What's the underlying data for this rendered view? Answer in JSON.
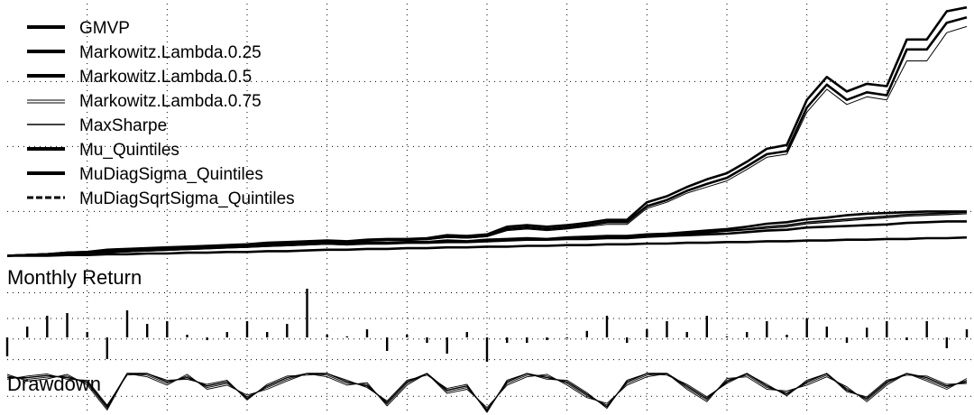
{
  "chart_data": [
    {
      "type": "line",
      "panel": "cumulative",
      "title": "",
      "grid": true,
      "legend_position": "top-left",
      "legend": [
        "GMVP",
        "Markowitz.Lambda.0.25",
        "Markowitz.Lambda.0.5",
        "Markowitz.Lambda.0.75",
        "MaxSharpe",
        "Mu_Quintiles",
        "MuDiagSigma_Quintiles",
        "MuDiagSqrtSigma_Quintiles"
      ],
      "x": [
        0,
        1,
        2,
        3,
        4,
        5,
        6,
        7,
        8,
        9,
        10,
        11,
        12,
        13,
        14,
        15,
        16,
        17,
        18,
        19,
        20,
        21,
        22,
        23,
        24,
        25,
        26,
        27,
        28,
        29,
        30,
        31,
        32,
        33,
        34,
        35,
        36,
        37,
        38,
        39,
        40,
        41,
        42,
        43,
        44,
        45,
        46,
        47,
        48
      ],
      "ylim": [
        0.9,
        4.3
      ],
      "series": [
        {
          "name": "GMVP",
          "color": "#000000",
          "width": 2.6,
          "values": [
            1.0,
            1.0,
            1.0,
            1.01,
            1.01,
            1.02,
            1.02,
            1.03,
            1.03,
            1.04,
            1.04,
            1.05,
            1.05,
            1.06,
            1.06,
            1.07,
            1.08,
            1.08,
            1.09,
            1.09,
            1.1,
            1.1,
            1.11,
            1.11,
            1.12,
            1.12,
            1.13,
            1.13,
            1.14,
            1.14,
            1.15,
            1.15,
            1.16,
            1.16,
            1.17,
            1.17,
            1.18,
            1.18,
            1.19,
            1.19,
            1.2,
            1.2,
            1.21,
            1.21,
            1.22,
            1.22,
            1.23,
            1.23,
            1.24
          ]
        },
        {
          "name": "Markowitz.Lambda.0.25",
          "color": "#000000",
          "width": 2.6,
          "values": [
            1.0,
            1.01,
            1.02,
            1.04,
            1.05,
            1.08,
            1.09,
            1.1,
            1.11,
            1.12,
            1.13,
            1.14,
            1.15,
            1.17,
            1.18,
            1.19,
            1.2,
            1.19,
            1.21,
            1.22,
            1.22,
            1.23,
            1.27,
            1.26,
            1.28,
            1.38,
            1.4,
            1.38,
            1.4,
            1.43,
            1.47,
            1.47,
            1.7,
            1.78,
            1.9,
            2.0,
            2.08,
            2.23,
            2.4,
            2.45,
            3.04,
            3.34,
            3.15,
            3.25,
            3.22,
            3.83,
            3.83,
            4.2,
            4.25
          ]
        },
        {
          "name": "Markowitz.Lambda.0.5",
          "color": "#000000",
          "width": 2.6,
          "values": [
            1.0,
            1.01,
            1.02,
            1.04,
            1.05,
            1.07,
            1.08,
            1.09,
            1.1,
            1.11,
            1.12,
            1.13,
            1.14,
            1.16,
            1.17,
            1.18,
            1.19,
            1.18,
            1.2,
            1.21,
            1.21,
            1.22,
            1.25,
            1.24,
            1.26,
            1.35,
            1.37,
            1.35,
            1.37,
            1.4,
            1.44,
            1.44,
            1.65,
            1.73,
            1.85,
            1.94,
            2.02,
            2.17,
            2.33,
            2.37,
            2.94,
            3.24,
            3.04,
            3.14,
            3.1,
            3.7,
            3.7,
            4.05,
            4.12
          ]
        },
        {
          "name": "Markowitz.Lambda.0.75",
          "color": "#000000",
          "width": 1.0,
          "values": [
            1.0,
            1.01,
            1.02,
            1.03,
            1.04,
            1.06,
            1.07,
            1.08,
            1.09,
            1.1,
            1.11,
            1.12,
            1.13,
            1.15,
            1.16,
            1.17,
            1.18,
            1.17,
            1.19,
            1.2,
            1.2,
            1.21,
            1.24,
            1.23,
            1.25,
            1.33,
            1.35,
            1.33,
            1.35,
            1.38,
            1.41,
            1.41,
            1.62,
            1.7,
            1.82,
            1.9,
            1.98,
            2.13,
            2.29,
            2.33,
            2.88,
            3.18,
            2.98,
            3.08,
            3.04,
            3.55,
            3.55,
            3.92,
            4.0
          ]
        },
        {
          "name": "MaxSharpe",
          "color": "#000000",
          "width": 1.3,
          "values": [
            1.0,
            1.01,
            1.02,
            1.03,
            1.04,
            1.05,
            1.06,
            1.07,
            1.08,
            1.09,
            1.1,
            1.11,
            1.12,
            1.13,
            1.14,
            1.15,
            1.16,
            1.16,
            1.17,
            1.17,
            1.18,
            1.18,
            1.19,
            1.19,
            1.2,
            1.21,
            1.22,
            1.22,
            1.23,
            1.23,
            1.24,
            1.24,
            1.26,
            1.27,
            1.28,
            1.3,
            1.32,
            1.34,
            1.36,
            1.38,
            1.42,
            1.44,
            1.46,
            1.48,
            1.5,
            1.52,
            1.53,
            1.54,
            1.55
          ]
        },
        {
          "name": "Mu_Quintiles",
          "color": "#000000",
          "width": 2.6,
          "values": [
            1.0,
            1.01,
            1.02,
            1.03,
            1.04,
            1.05,
            1.06,
            1.07,
            1.08,
            1.09,
            1.1,
            1.11,
            1.12,
            1.13,
            1.14,
            1.15,
            1.16,
            1.15,
            1.17,
            1.17,
            1.18,
            1.18,
            1.2,
            1.19,
            1.21,
            1.22,
            1.23,
            1.22,
            1.24,
            1.25,
            1.26,
            1.26,
            1.28,
            1.29,
            1.31,
            1.33,
            1.35,
            1.38,
            1.42,
            1.44,
            1.48,
            1.5,
            1.53,
            1.55,
            1.56,
            1.57,
            1.58,
            1.58,
            1.58
          ]
        },
        {
          "name": "MuDiagSigma_Quintiles",
          "color": "#000000",
          "width": 2.6,
          "values": [
            1.0,
            1.01,
            1.02,
            1.03,
            1.04,
            1.05,
            1.06,
            1.07,
            1.08,
            1.09,
            1.1,
            1.11,
            1.12,
            1.13,
            1.14,
            1.15,
            1.16,
            1.15,
            1.16,
            1.16,
            1.17,
            1.17,
            1.18,
            1.18,
            1.19,
            1.2,
            1.21,
            1.21,
            1.22,
            1.22,
            1.23,
            1.23,
            1.25,
            1.26,
            1.27,
            1.28,
            1.29,
            1.31,
            1.33,
            1.34,
            1.37,
            1.38,
            1.39,
            1.4,
            1.41,
            1.43,
            1.44,
            1.45,
            1.45
          ]
        },
        {
          "name": "MuDiagSqrtSigma_Quintiles",
          "color": "#000000",
          "width": 1.6,
          "values": [
            1.0,
            1.01,
            1.02,
            1.03,
            1.04,
            1.05,
            1.06,
            1.07,
            1.08,
            1.09,
            1.1,
            1.11,
            1.12,
            1.13,
            1.14,
            1.15,
            1.16,
            1.15,
            1.17,
            1.17,
            1.18,
            1.18,
            1.19,
            1.19,
            1.2,
            1.21,
            1.22,
            1.21,
            1.23,
            1.23,
            1.24,
            1.24,
            1.26,
            1.27,
            1.29,
            1.31,
            1.33,
            1.35,
            1.38,
            1.4,
            1.44,
            1.46,
            1.48,
            1.5,
            1.52,
            1.54,
            1.55,
            1.56,
            1.57
          ]
        }
      ]
    },
    {
      "type": "bar",
      "panel": "monthly",
      "title": "Monthly Return",
      "grid": true,
      "ylim": [
        -0.06,
        0.13
      ],
      "x": [
        0,
        1,
        2,
        3,
        4,
        5,
        6,
        7,
        8,
        9,
        10,
        11,
        12,
        13,
        14,
        15,
        16,
        17,
        18,
        19,
        20,
        21,
        22,
        23,
        24,
        25,
        26,
        27,
        28,
        29,
        30,
        31,
        32,
        33,
        34,
        35,
        36,
        37,
        38,
        39,
        40,
        41,
        42,
        43,
        44,
        45,
        46,
        47,
        48
      ],
      "values": [
        -0.035,
        0.02,
        0.04,
        0.045,
        0.01,
        -0.04,
        0.05,
        0.025,
        0.03,
        0.005,
        -0.005,
        0.01,
        0.03,
        0.01,
        0.025,
        0.09,
        0.005,
        0.002,
        0.015,
        -0.025,
        0.005,
        -0.01,
        -0.03,
        0.01,
        -0.045,
        -0.01,
        -0.01,
        -0.005,
        -0.002,
        0.012,
        0.04,
        -0.01,
        0.015,
        0.03,
        0.01,
        0.04,
        0.002,
        0.01,
        0.03,
        0.005,
        0.035,
        0.02,
        -0.01,
        0.018,
        0.03,
        -0.005,
        0.03,
        -0.02,
        0.015
      ]
    },
    {
      "type": "line",
      "panel": "drawdown",
      "title": "Drawdown",
      "grid": true,
      "ylim": [
        -0.1,
        0.0
      ],
      "x": [
        0,
        1,
        2,
        3,
        4,
        5,
        6,
        7,
        8,
        9,
        10,
        11,
        12,
        13,
        14,
        15,
        16,
        17,
        18,
        19,
        20,
        21,
        22,
        23,
        24,
        25,
        26,
        27,
        28,
        29,
        30,
        31,
        32,
        33,
        34,
        35,
        36,
        37,
        38,
        39,
        40,
        41,
        42,
        43,
        44,
        45,
        46,
        47,
        48
      ],
      "values": [
        -0.01,
        -0.01,
        -0.005,
        -0.01,
        -0.02,
        -0.08,
        0,
        0,
        -0.02,
        -0.01,
        -0.03,
        -0.02,
        -0.06,
        -0.03,
        -0.01,
        0,
        0,
        -0.02,
        -0.03,
        -0.07,
        -0.02,
        0,
        -0.04,
        -0.03,
        -0.09,
        -0.02,
        0,
        -0.01,
        -0.02,
        -0.05,
        -0.08,
        -0.02,
        0,
        0,
        -0.03,
        -0.06,
        -0.02,
        0,
        -0.03,
        -0.05,
        -0.02,
        0,
        -0.04,
        -0.06,
        -0.02,
        0,
        -0.01,
        -0.03,
        -0.02
      ]
    }
  ]
}
